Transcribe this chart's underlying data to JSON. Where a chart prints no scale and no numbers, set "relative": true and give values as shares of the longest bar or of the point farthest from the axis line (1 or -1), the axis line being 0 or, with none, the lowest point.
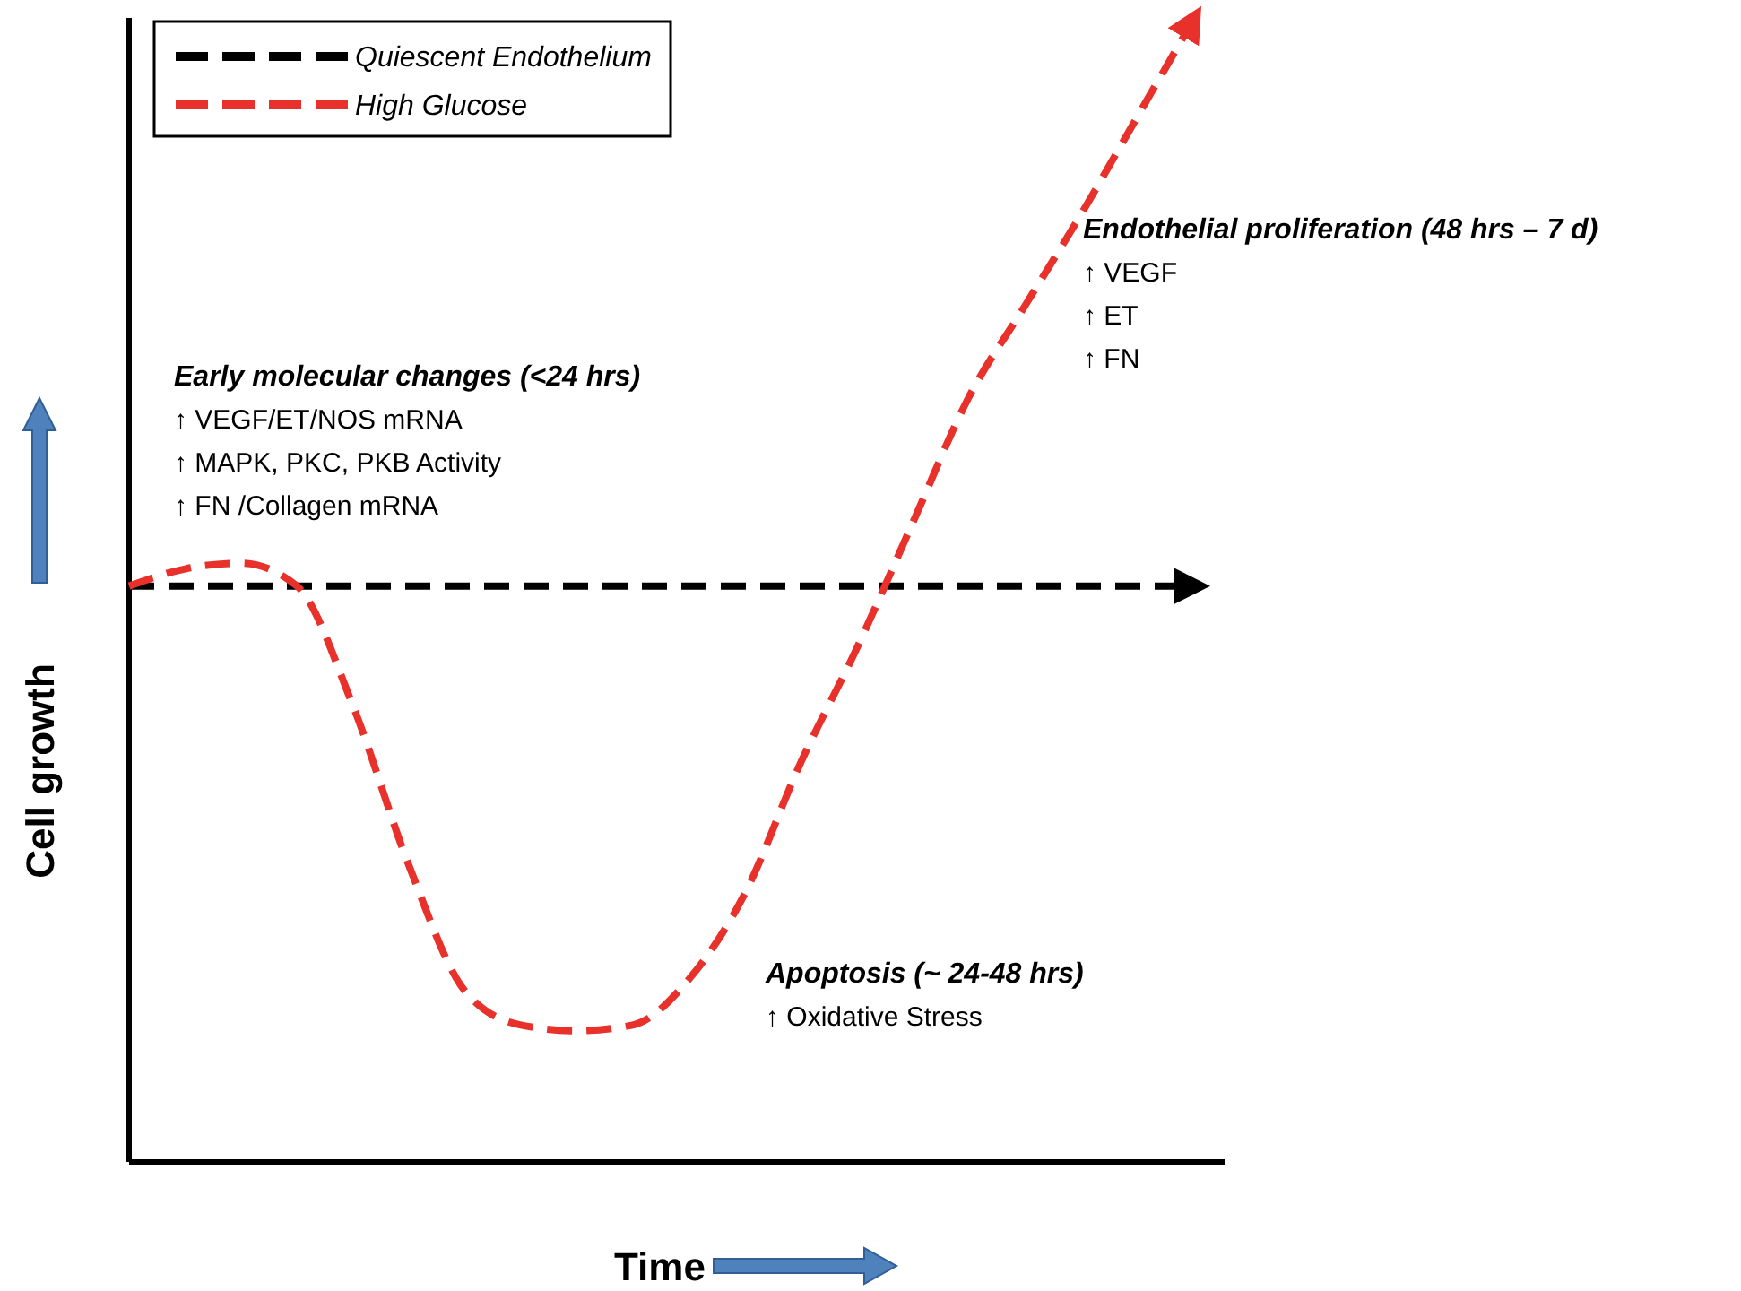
{
  "chart_data": {
    "type": "line",
    "relative": true,
    "xlabel": "Time",
    "ylabel": "Cell growth",
    "categories": [
      null,
      null,
      null,
      null,
      null,
      null,
      null,
      null,
      null,
      null,
      null,
      null,
      null,
      null,
      null,
      null,
      null,
      null,
      null,
      null
    ],
    "series": [
      {
        "name": "Quiescent Endothelium",
        "color": "#000000",
        "values": [
          0.505,
          0.505,
          0.505,
          0.505,
          0.505,
          0.505,
          0.505,
          0.505,
          0.505,
          0.505,
          0.505,
          0.505,
          0.505,
          0.505,
          0.505,
          0.505,
          0.505,
          0.505,
          0.505,
          0.505
        ]
      },
      {
        "name": "High Glucose",
        "color": "#e8312a",
        "values": [
          0.505,
          0.52,
          0.525,
          0.505,
          0.4,
          0.26,
          0.15,
          0.12,
          0.115,
          0.12,
          0.16,
          0.235,
          0.35,
          0.45,
          0.56,
          0.67,
          0.75,
          0.83,
          0.915,
          1.0
        ]
      }
    ],
    "annotations": [
      "Early molecular changes (<24 hrs)\n↑ VEGF/ET/NOS mRNA\n↑ MAPK, PKC, PKB Activity\n↑ FN /Collagen mRNA",
      "Endothelial proliferation (48 hrs – 7 d)\n↑ VEGF\n↑ ET\n↑ FN",
      "Apoptosis (~ 24-48 hrs)\n↑ Oxidative Stress"
    ],
    "legend": "top left",
    "line_style": "dashed",
    "marker": "none",
    "grid": false,
    "tick_labels": false
  }
}
